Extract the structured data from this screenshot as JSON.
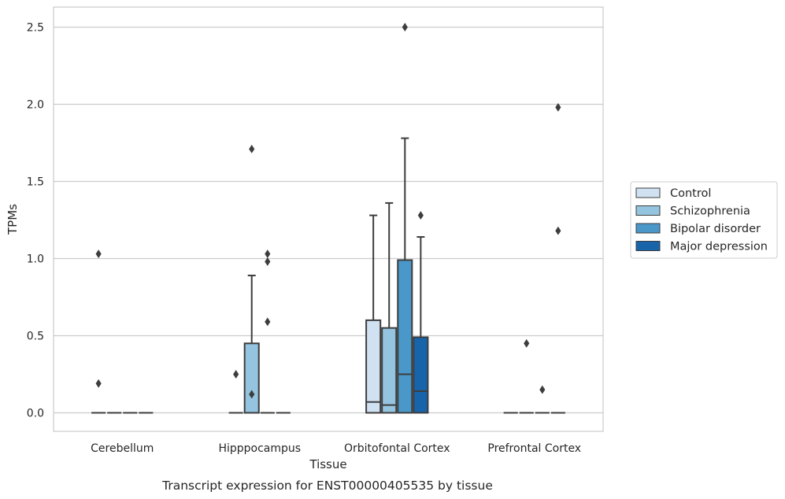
{
  "chart_data": {
    "type": "boxplot",
    "xlabel": "Tissue",
    "ylabel": "TPMs",
    "caption": "Transcript expression for ENST00000405535 by tissue",
    "ylim": [
      -0.12,
      2.63
    ],
    "yticks": [
      0.0,
      0.5,
      1.0,
      1.5,
      2.0,
      2.5
    ],
    "ytick_labels": [
      "0.0",
      "0.5",
      "1.0",
      "1.5",
      "2.0",
      "2.5"
    ],
    "grid": true,
    "legend_position": "right",
    "categories": [
      "Cerebellum",
      "Hipppocampus",
      "Orbitofontal Cortex",
      "Prefrontal Cortex"
    ],
    "series": [
      {
        "name": "Control",
        "color": "#d0e1f2",
        "boxes": [
          {
            "q1": 0,
            "median": 0,
            "q3": 0,
            "whisker_low": 0,
            "whisker_high": 0,
            "outliers": [
              1.03,
              0.19
            ]
          },
          {
            "q1": 0,
            "median": 0,
            "q3": 0,
            "whisker_low": 0,
            "whisker_high": 0,
            "outliers": [
              0.25
            ]
          },
          {
            "q1": 0,
            "median": 0.07,
            "q3": 0.6,
            "whisker_low": 0,
            "whisker_high": 1.28,
            "outliers": []
          },
          {
            "q1": 0,
            "median": 0,
            "q3": 0,
            "whisker_low": 0,
            "whisker_high": 0,
            "outliers": []
          }
        ]
      },
      {
        "name": "Schizophrenia",
        "color": "#94c4df",
        "boxes": [
          {
            "q1": 0,
            "median": 0,
            "q3": 0,
            "whisker_low": 0,
            "whisker_high": 0,
            "outliers": []
          },
          {
            "q1": 0,
            "median": 0,
            "q3": 0.45,
            "whisker_low": 0,
            "whisker_high": 0.89,
            "outliers": [
              1.71,
              0.12
            ]
          },
          {
            "q1": 0,
            "median": 0.05,
            "q3": 0.55,
            "whisker_low": 0,
            "whisker_high": 1.36,
            "outliers": []
          },
          {
            "q1": 0,
            "median": 0,
            "q3": 0,
            "whisker_low": 0,
            "whisker_high": 0,
            "outliers": [
              0.45
            ]
          }
        ]
      },
      {
        "name": "Bipolar disorder",
        "color": "#4a98c9",
        "boxes": [
          {
            "q1": 0,
            "median": 0,
            "q3": 0,
            "whisker_low": 0,
            "whisker_high": 0,
            "outliers": []
          },
          {
            "q1": 0,
            "median": 0,
            "q3": 0,
            "whisker_low": 0,
            "whisker_high": 0,
            "outliers": [
              1.03,
              0.98,
              0.59
            ]
          },
          {
            "q1": 0,
            "median": 0.25,
            "q3": 0.99,
            "whisker_low": 0,
            "whisker_high": 1.78,
            "outliers": [
              2.5
            ]
          },
          {
            "q1": 0,
            "median": 0,
            "q3": 0,
            "whisker_low": 0,
            "whisker_high": 0,
            "outliers": [
              0.15
            ]
          }
        ]
      },
      {
        "name": "Major depression",
        "color": "#1764ab",
        "boxes": [
          {
            "q1": 0,
            "median": 0,
            "q3": 0,
            "whisker_low": 0,
            "whisker_high": 0,
            "outliers": []
          },
          {
            "q1": 0,
            "median": 0,
            "q3": 0,
            "whisker_low": 0,
            "whisker_high": 0,
            "outliers": []
          },
          {
            "q1": 0,
            "median": 0.14,
            "q3": 0.49,
            "whisker_low": 0,
            "whisker_high": 1.14,
            "outliers": [
              1.28
            ]
          },
          {
            "q1": 0,
            "median": 0,
            "q3": 0,
            "whisker_low": 0,
            "whisker_high": 0,
            "outliers": [
              1.98,
              1.18
            ]
          }
        ]
      }
    ]
  }
}
